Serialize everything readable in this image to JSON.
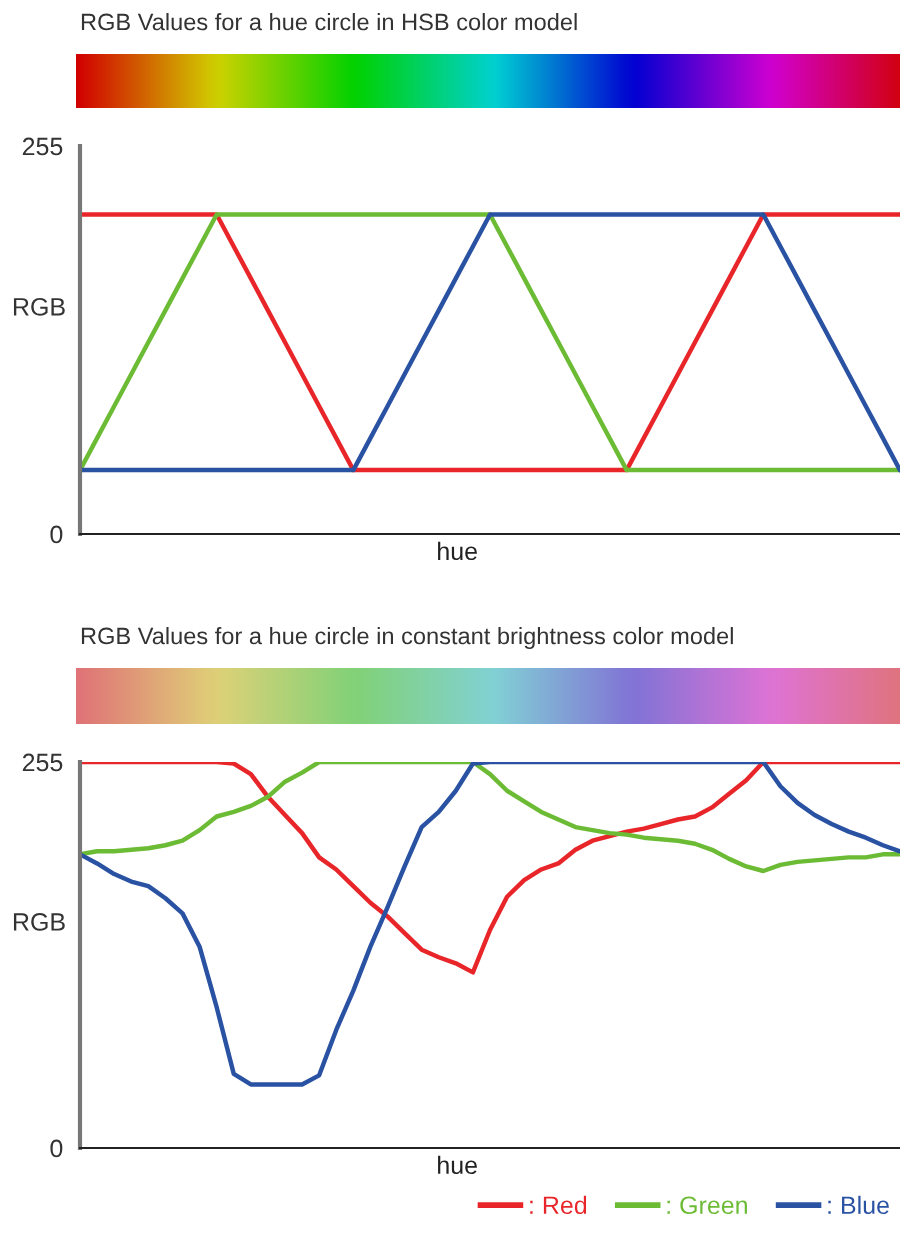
{
  "chart_data": [
    {
      "type": "line",
      "title": "RGB Values for a hue circle in HSB color model",
      "xlabel": "hue",
      "ylabel": "RGB",
      "ylim": [
        0,
        255
      ],
      "yticks": [
        0,
        255
      ],
      "tick_labels": "y",
      "categories": [
        null,
        null,
        null,
        null,
        null,
        null,
        null,
        null,
        null,
        null,
        null,
        null,
        null,
        null,
        null,
        null,
        null,
        null,
        null,
        null,
        null,
        null,
        null,
        null,
        null,
        null,
        null,
        null,
        null,
        null,
        null,
        null,
        null,
        null,
        null,
        null,
        null,
        null,
        null,
        null,
        null,
        null,
        null,
        null,
        null,
        null,
        null,
        null,
        null
      ],
      "series": [
        {
          "color": "#e8262a",
          "values": [
            210,
            210,
            210,
            210,
            210,
            210,
            210,
            210,
            210,
            189,
            168,
            147,
            126,
            105,
            84,
            63,
            42,
            42,
            42,
            42,
            42,
            42,
            42,
            42,
            42,
            42,
            42,
            42,
            42,
            42,
            42,
            42,
            42,
            63,
            84,
            105,
            126,
            147,
            168,
            189,
            210,
            210,
            210,
            210,
            210,
            210,
            210,
            210,
            210
          ]
        },
        {
          "color": "#6cbb35",
          "values": [
            42,
            63,
            84,
            105,
            126,
            147,
            168,
            189,
            210,
            210,
            210,
            210,
            210,
            210,
            210,
            210,
            210,
            210,
            210,
            210,
            210,
            210,
            210,
            210,
            210,
            189,
            168,
            147,
            126,
            105,
            84,
            63,
            42,
            42,
            42,
            42,
            42,
            42,
            42,
            42,
            42,
            42,
            42,
            42,
            42,
            42,
            42,
            42,
            42
          ]
        },
        {
          "color": "#2a52a3",
          "values": [
            42,
            42,
            42,
            42,
            42,
            42,
            42,
            42,
            42,
            42,
            42,
            42,
            42,
            42,
            42,
            42,
            42,
            63,
            84,
            105,
            126,
            147,
            168,
            189,
            210,
            210,
            210,
            210,
            210,
            210,
            210,
            210,
            210,
            210,
            210,
            210,
            210,
            210,
            210,
            210,
            210,
            189,
            168,
            147,
            126,
            105,
            84,
            63,
            42
          ]
        }
      ]
    },
    {
      "type": "line",
      "title": "RGB Values for a hue circle in constant brightness color model",
      "xlabel": "hue",
      "ylabel": "RGB",
      "ylim": [
        0,
        255
      ],
      "yticks": [
        0,
        255
      ],
      "tick_labels": "y",
      "legend": "bottom right",
      "categories": [
        null,
        null,
        null,
        null,
        null,
        null,
        null,
        null,
        null,
        null,
        null,
        null,
        null,
        null,
        null,
        null,
        null,
        null,
        null,
        null,
        null,
        null,
        null,
        null,
        null,
        null,
        null,
        null,
        null,
        null,
        null,
        null,
        null,
        null,
        null,
        null,
        null,
        null,
        null,
        null,
        null,
        null,
        null,
        null,
        null,
        null,
        null,
        null,
        null
      ],
      "series": [
        {
          "name": ": Red",
          "color": "#e8262a",
          "values": [
            255,
            255,
            255,
            255,
            255,
            255,
            255,
            255,
            255,
            254,
            247,
            232,
            220,
            208,
            192,
            184,
            173,
            162,
            153,
            142,
            131,
            126,
            122,
            116,
            144,
            166,
            177,
            184,
            188,
            197,
            203,
            206,
            209,
            211,
            214,
            217,
            219,
            225,
            234,
            243,
            255,
            255,
            255,
            255,
            255,
            255,
            255,
            255,
            255
          ]
        },
        {
          "name": ": Green",
          "color": "#6cbb35",
          "values": [
            194,
            196,
            196,
            197,
            198,
            200,
            203,
            210,
            219,
            222,
            226,
            232,
            242,
            248,
            255,
            255,
            255,
            255,
            255,
            255,
            255,
            255,
            255,
            255,
            247,
            236,
            229,
            222,
            217,
            212,
            210,
            208,
            207,
            205,
            204,
            203,
            201,
            197,
            191,
            186,
            183,
            187,
            189,
            190,
            191,
            192,
            192,
            194,
            194
          ]
        },
        {
          "name": ": Blue",
          "color": "#2a52a3",
          "values": [
            194,
            188,
            181,
            176,
            173,
            165,
            155,
            133,
            93,
            49,
            42,
            42,
            42,
            42,
            48,
            78,
            104,
            133,
            159,
            186,
            212,
            222,
            236,
            254,
            255,
            255,
            255,
            255,
            255,
            255,
            255,
            255,
            255,
            255,
            255,
            255,
            255,
            255,
            255,
            255,
            255,
            239,
            228,
            220,
            214,
            209,
            205,
            200,
            196
          ]
        }
      ]
    }
  ]
}
